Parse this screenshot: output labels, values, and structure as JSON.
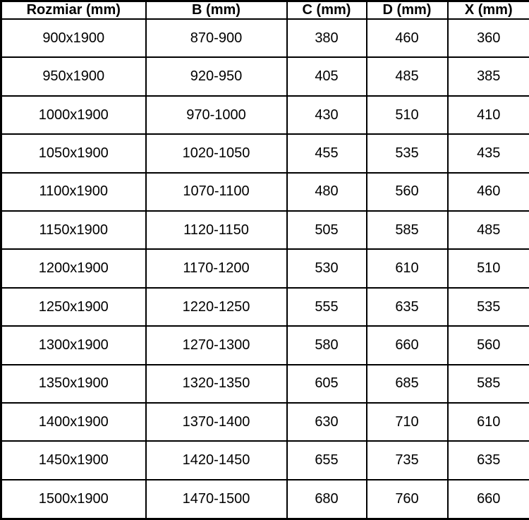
{
  "table": {
    "columns": [
      "Rozmiar (mm)",
      "B (mm)",
      "C (mm)",
      "D (mm)",
      "X (mm)"
    ],
    "rows": [
      [
        "900x1900",
        "870-900",
        "380",
        "460",
        "360"
      ],
      [
        "950x1900",
        "920-950",
        "405",
        "485",
        "385"
      ],
      [
        "1000x1900",
        "970-1000",
        "430",
        "510",
        "410"
      ],
      [
        "1050x1900",
        "1020-1050",
        "455",
        "535",
        "435"
      ],
      [
        "1100x1900",
        "1070-1100",
        "480",
        "560",
        "460"
      ],
      [
        "1150x1900",
        "1120-1150",
        "505",
        "585",
        "485"
      ],
      [
        "1200x1900",
        "1170-1200",
        "530",
        "610",
        "510"
      ],
      [
        "1250x1900",
        "1220-1250",
        "555",
        "635",
        "535"
      ],
      [
        "1300x1900",
        "1270-1300",
        "580",
        "660",
        "560"
      ],
      [
        "1350x1900",
        "1320-1350",
        "605",
        "685",
        "585"
      ],
      [
        "1400x1900",
        "1370-1400",
        "630",
        "710",
        "610"
      ],
      [
        "1450x1900",
        "1420-1450",
        "655",
        "735",
        "635"
      ],
      [
        "1500x1900",
        "1470-1500",
        "680",
        "760",
        "660"
      ]
    ],
    "colors": {
      "border": "#000000",
      "background": "#ffffff",
      "text": "#000000"
    }
  }
}
